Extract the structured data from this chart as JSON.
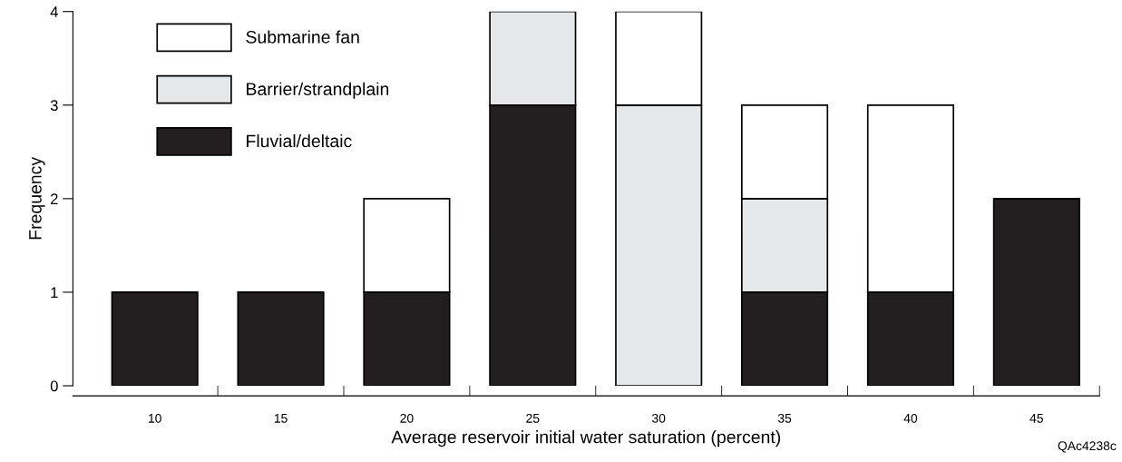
{
  "chart_data": {
    "type": "bar",
    "stacked": true,
    "xlabel": "Average reservoir initial water saturation (percent)",
    "ylabel": "Frequency",
    "categories": [
      "10",
      "15",
      "20",
      "25",
      "30",
      "35",
      "40",
      "45"
    ],
    "series": [
      {
        "name": "Fluvial/deltaic",
        "color": "#231f20",
        "values": [
          1,
          1,
          1,
          3,
          0,
          1,
          1,
          2
        ]
      },
      {
        "name": "Barrier/strandplain",
        "color": "#e6e7e8",
        "values": [
          0,
          0,
          0,
          1,
          3,
          1,
          0,
          0
        ]
      },
      {
        "name": "Submarine fan",
        "color": "#ffffff",
        "values": [
          0,
          0,
          1,
          0,
          1,
          1,
          2,
          0
        ]
      }
    ],
    "ylim": [
      0,
      4
    ],
    "yticks": [
      0,
      1,
      2,
      3,
      4
    ],
    "grid": false,
    "legend": "top left",
    "annotations": [
      "QAc4238c"
    ]
  }
}
